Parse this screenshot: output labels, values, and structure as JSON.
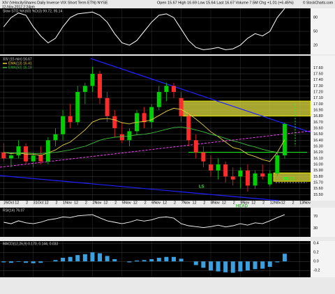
{
  "chart_data": {
    "type": "candlestick",
    "title": "XIV (VelocityShares Daily Inverse VIX Short Term ETN) NYSE",
    "subtitle": "12-Nov-2012 2:24pm",
    "quote": "Open 15.67 High 16.69 Low 15.64 Last 16.67 Volume 7.5M Chg +1.01 (+6.45%)",
    "source": "© StockCharts.com",
    "price_label": "XIV (15 min) 16.67",
    "up_color": "#00d000",
    "down_color": "#ff2a2a",
    "open": [
      16.2,
      16.1,
      16.15,
      16.3,
      16.05,
      16.15,
      16.05,
      16.4,
      16.5,
      16.8,
      16.7,
      17.2,
      17.3,
      17.5,
      17.1,
      16.8,
      16.5,
      16.4,
      16.55,
      16.85,
      16.7,
      16.95,
      17.2,
      17.3,
      17.1,
      16.8,
      16.4,
      16.2,
      16.0,
      15.9,
      16.0,
      15.8,
      15.8,
      15.9,
      15.65,
      15.85,
      15.67,
      15.85,
      16.15
    ],
    "high": [
      16.35,
      16.2,
      16.4,
      16.35,
      16.2,
      16.3,
      16.45,
      16.6,
      16.9,
      17.0,
      17.3,
      17.35,
      17.62,
      17.55,
      17.2,
      16.9,
      16.7,
      16.6,
      16.9,
      16.95,
      17.0,
      17.3,
      17.35,
      17.35,
      17.2,
      16.85,
      16.5,
      16.3,
      16.15,
      16.1,
      16.05,
      15.95,
      15.95,
      16.0,
      15.9,
      16.0,
      15.9,
      16.2,
      16.69
    ],
    "low": [
      16.05,
      15.95,
      16.1,
      16.0,
      15.95,
      16.0,
      16.0,
      16.3,
      16.4,
      16.6,
      16.65,
      17.0,
      17.2,
      17.0,
      16.7,
      16.45,
      16.35,
      16.3,
      16.5,
      16.6,
      16.6,
      16.9,
      17.05,
      17.1,
      16.7,
      16.3,
      16.1,
      15.95,
      15.8,
      15.75,
      15.7,
      15.65,
      15.6,
      15.55,
      15.6,
      15.75,
      15.64,
      15.8,
      16.1
    ],
    "close": [
      16.1,
      16.15,
      16.3,
      16.05,
      16.15,
      16.05,
      16.4,
      16.5,
      16.8,
      16.7,
      17.2,
      17.3,
      17.5,
      17.1,
      16.8,
      16.6,
      16.4,
      16.55,
      16.85,
      16.7,
      16.95,
      17.2,
      17.3,
      17.2,
      16.8,
      16.4,
      16.2,
      16.05,
      15.9,
      16.0,
      15.8,
      15.75,
      15.9,
      15.65,
      15.85,
      15.8,
      15.85,
      16.15,
      16.67
    ],
    "series": [
      {
        "name": "EMA(13) 16.41",
        "color": "#e8d040",
        "values": [
          16.2,
          16.18,
          16.19,
          16.17,
          16.17,
          16.15,
          16.19,
          16.24,
          16.32,
          16.37,
          16.47,
          16.57,
          16.7,
          16.75,
          16.76,
          16.74,
          16.69,
          16.67,
          16.7,
          16.71,
          16.74,
          16.81,
          16.88,
          16.93,
          16.91,
          16.84,
          16.75,
          16.65,
          16.54,
          16.46,
          16.37,
          16.28,
          16.25,
          16.17,
          16.13,
          16.08,
          16.05,
          16.2,
          16.41
        ]
      },
      {
        "name": "EMA(50) 16.19",
        "color": "#40c040",
        "values": [
          16.2,
          16.19,
          16.19,
          16.19,
          16.18,
          16.18,
          16.19,
          16.2,
          16.22,
          16.24,
          16.27,
          16.3,
          16.35,
          16.4,
          16.43,
          16.45,
          16.46,
          16.47,
          16.49,
          16.5,
          16.52,
          16.55,
          16.58,
          16.61,
          16.62,
          16.6,
          16.57,
          16.54,
          16.5,
          16.47,
          16.43,
          16.39,
          16.36,
          16.32,
          16.29,
          16.25,
          16.22,
          16.2,
          16.19
        ]
      }
    ],
    "ylim": [
      15.4,
      17.8
    ],
    "yticks": [
      {
        "value": 15.5,
        "label": "15.50"
      },
      {
        "value": 15.6,
        "label": "15.60"
      },
      {
        "value": 15.7,
        "label": "15.70"
      },
      {
        "value": 15.8,
        "label": "15.80"
      },
      {
        "value": 15.9,
        "label": "15.90"
      },
      {
        "value": 16,
        "label": "16.00"
      },
      {
        "value": 16.1,
        "label": "16.10"
      },
      {
        "value": 16.2,
        "label": "16.20"
      },
      {
        "value": 16.3,
        "label": "16.30"
      },
      {
        "value": 16.4,
        "label": "16.40"
      },
      {
        "value": 16.5,
        "label": "16.50"
      },
      {
        "value": 16.6,
        "label": "16.60"
      },
      {
        "value": 16.7,
        "label": "16.70"
      },
      {
        "value": 16.8,
        "label": "16.80"
      },
      {
        "value": 16.9,
        "label": "16.90"
      },
      {
        "value": 17,
        "label": "17.00"
      },
      {
        "value": 17.1,
        "label": "17.10"
      },
      {
        "value": 17.2,
        "label": "17.20"
      },
      {
        "value": 17.3,
        "label": "17.30"
      },
      {
        "value": 17.4,
        "label": "17.40"
      },
      {
        "value": 17.5,
        "label": "17.50"
      },
      {
        "value": 17.6,
        "label": "17.60"
      }
    ],
    "xlim": [
      -0.5,
      41.5
    ],
    "xticks": [
      {
        "value": 0,
        "label": "26Oct"
      },
      {
        "value": 1.5,
        "label": "12"
      },
      {
        "value": 3,
        "label": "2"
      },
      {
        "value": 4,
        "label": "31Oct"
      },
      {
        "value": 5.5,
        "label": "12"
      },
      {
        "value": 7,
        "label": "2"
      },
      {
        "value": 8,
        "label": "1Nov"
      },
      {
        "value": 9.5,
        "label": "12"
      },
      {
        "value": 11,
        "label": "2"
      },
      {
        "value": 12,
        "label": "2Nov"
      },
      {
        "value": 13.5,
        "label": "12"
      },
      {
        "value": 15,
        "label": "2"
      },
      {
        "value": 16,
        "label": "5Nov"
      },
      {
        "value": 17.5,
        "label": "12"
      },
      {
        "value": 19,
        "label": "2"
      },
      {
        "value": 20,
        "label": "6Nov"
      },
      {
        "value": 21.5,
        "label": "12"
      },
      {
        "value": 23,
        "label": "2"
      },
      {
        "value": 24,
        "label": "7Nov"
      },
      {
        "value": 25.5,
        "label": "12"
      },
      {
        "value": 27,
        "label": "2"
      },
      {
        "value": 28,
        "label": "8Nov"
      },
      {
        "value": 29.5,
        "label": "12"
      },
      {
        "value": 31,
        "label": "2"
      },
      {
        "value": 32,
        "label": "9Nov"
      },
      {
        "value": 33.5,
        "label": "12"
      },
      {
        "value": 35,
        "label": "2"
      },
      {
        "value": 36,
        "label": "12Nov"
      },
      {
        "value": 37.5,
        "label": "12"
      },
      {
        "value": 39,
        "label": "2"
      },
      {
        "value": 40,
        "label": "13Nov"
      }
    ],
    "annotations": {
      "ls": "LS",
      "head": "HEAD",
      "rs": "RS ??"
    },
    "sto": {
      "name": "Slow STO %K(60) %D(3) 99.72, 95.14",
      "color": "#ffffff",
      "ylim": [
        0,
        100
      ],
      "yticks": [
        20,
        50,
        80
      ],
      "values": [
        60,
        80,
        90,
        85,
        60,
        40,
        25,
        35,
        60,
        80,
        88,
        90,
        92,
        85,
        70,
        45,
        25,
        20,
        30,
        50,
        70,
        85,
        88,
        80,
        55,
        30,
        15,
        10,
        12,
        15,
        10,
        12,
        20,
        35,
        45,
        40,
        50,
        80,
        99.72
      ]
    },
    "rsi": {
      "name": "RSI(14) 76.07",
      "color": "#ffffff",
      "ylim": [
        0,
        100
      ],
      "yticks": [
        30,
        70
      ],
      "values": [
        50,
        45,
        55,
        48,
        45,
        50,
        58,
        62,
        68,
        66,
        72,
        74,
        76,
        65,
        55,
        50,
        45,
        50,
        58,
        54,
        58,
        66,
        68,
        64,
        45,
        38,
        35,
        32,
        35,
        40,
        34,
        38,
        45,
        40,
        48,
        45,
        55,
        66,
        76.07
      ]
    },
    "macd": {
      "name": "MACD(12,26,9) 0.170, 0.144, 0.033",
      "color": "#3aa0e0",
      "ylim": [
        -0.35,
        0.45
      ],
      "yticks": [
        -0.2,
        {
          "value": 0,
          "label": "0.0"
        },
        0.2,
        0.4
      ],
      "values": [
        -0.02,
        -0.03,
        -0.01,
        -0.03,
        -0.04,
        -0.03,
        0,
        0.03,
        0.08,
        0.1,
        0.14,
        0.16,
        0.2,
        0.18,
        0.12,
        0.05,
        0,
        -0.02,
        0.02,
        0.03,
        0.05,
        0.08,
        0.1,
        0.1,
        0.06,
        0,
        -0.08,
        -0.14,
        -0.2,
        -0.22,
        -0.24,
        -0.25,
        -0.22,
        -0.2,
        -0.17,
        -0.16,
        -0.12,
        -0.02,
        0.17
      ]
    }
  }
}
